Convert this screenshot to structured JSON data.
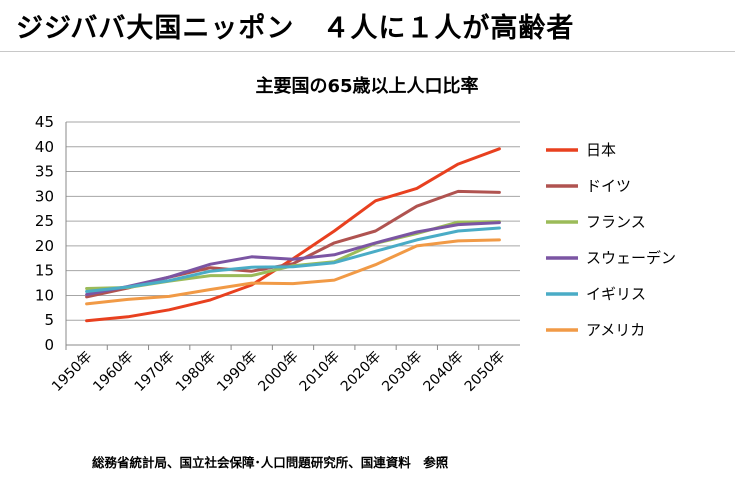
{
  "header": {
    "title": "ジジババ大国ニッポン　４人に１人が高齢者"
  },
  "source_note": "総務省統計局、国立社会保障･人口問題研究所、国連資料　参照",
  "chart_data": {
    "type": "line",
    "title": "主要国の65歳以上人口比率",
    "xlabel": "",
    "ylabel": "",
    "categories": [
      "1950年",
      "1960年",
      "1970年",
      "1980年",
      "1990年",
      "2000年",
      "2010年",
      "2020年",
      "2030年",
      "2040年",
      "2050年"
    ],
    "ylim": [
      0,
      45
    ],
    "yticks": [
      0,
      5,
      10,
      15,
      20,
      25,
      30,
      35,
      40,
      45
    ],
    "grid": true,
    "legend_position": "right",
    "series": [
      {
        "name": "日本",
        "color": "#e8401f",
        "values": [
          4.9,
          5.7,
          7.1,
          9.1,
          12.1,
          17.4,
          23.0,
          29.1,
          31.6,
          36.5,
          39.6
        ]
      },
      {
        "name": "ドイツ",
        "color": "#b05350",
        "values": [
          9.7,
          11.5,
          13.7,
          15.6,
          14.9,
          16.4,
          20.6,
          23.0,
          28.0,
          31.0,
          30.8
        ]
      },
      {
        "name": "フランス",
        "color": "#9bbb59",
        "values": [
          11.4,
          11.6,
          12.9,
          14.0,
          14.0,
          16.0,
          16.8,
          20.5,
          22.5,
          24.8,
          24.9
        ]
      },
      {
        "name": "スウェーデン",
        "color": "#7b55a3",
        "values": [
          10.2,
          11.8,
          13.7,
          16.3,
          17.8,
          17.3,
          18.2,
          20.6,
          22.8,
          24.3,
          24.7
        ]
      },
      {
        "name": "イギリス",
        "color": "#4aacc6",
        "values": [
          10.8,
          11.7,
          13.0,
          14.9,
          15.7,
          15.8,
          16.6,
          18.9,
          21.2,
          23.0,
          23.6
        ]
      },
      {
        "name": "アメリカ",
        "color": "#f19a46",
        "values": [
          8.3,
          9.2,
          9.8,
          11.2,
          12.5,
          12.4,
          13.1,
          16.2,
          20.0,
          21.0,
          21.2
        ]
      }
    ]
  }
}
